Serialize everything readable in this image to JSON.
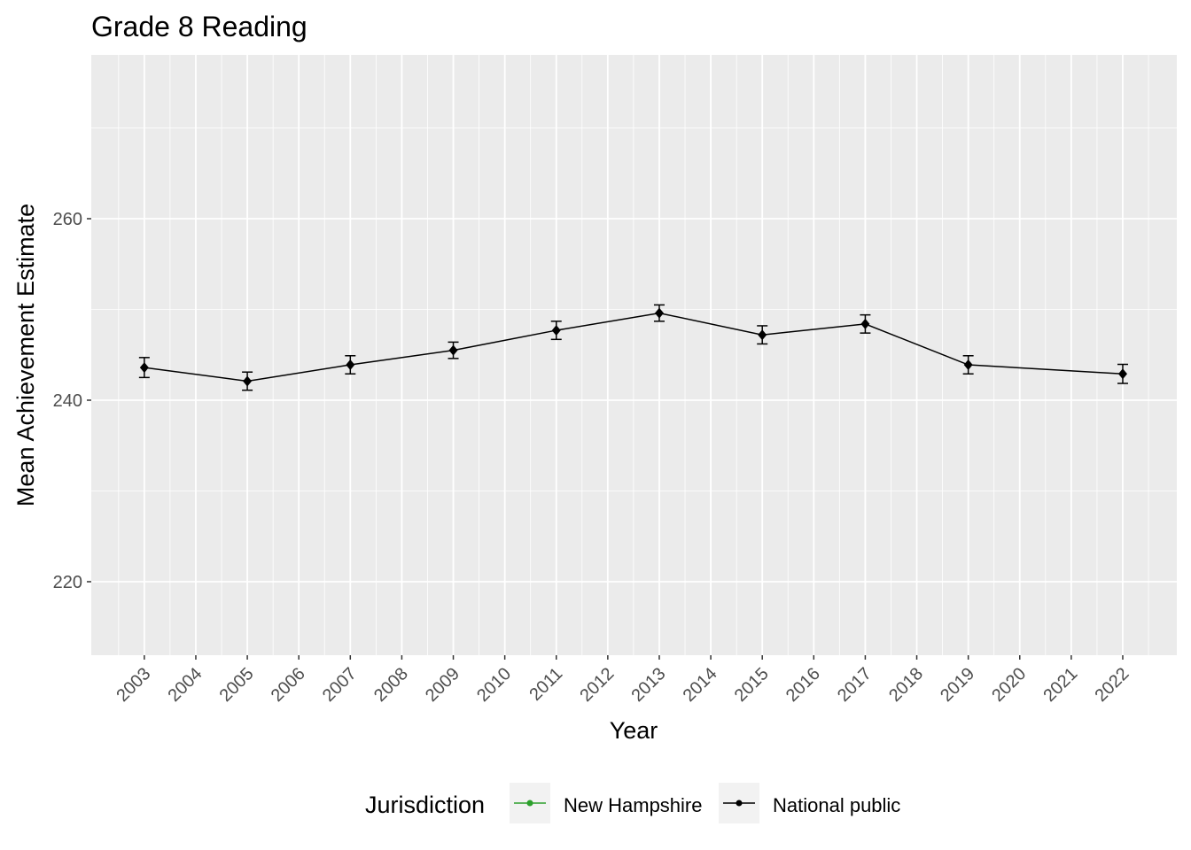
{
  "chart_data": {
    "type": "line",
    "title": "Grade 8 Reading",
    "xlabel": "Year",
    "ylabel": "Mean Achievement Estimate",
    "xlim": [
      2001.97,
      2023.05
    ],
    "ylim": [
      211.9,
      278.05
    ],
    "x_ticks": [
      2003,
      2004,
      2005,
      2006,
      2007,
      2008,
      2009,
      2010,
      2011,
      2012,
      2013,
      2014,
      2015,
      2016,
      2017,
      2018,
      2019,
      2020,
      2021,
      2022
    ],
    "y_ticks": [
      220,
      240,
      260
    ],
    "grid": true,
    "legend": {
      "title": "Jurisdiction",
      "placement": "bottom",
      "entries": [
        {
          "name": "New Hampshire",
          "color": "#2ca02c"
        },
        {
          "name": "National public",
          "color": "#000000"
        }
      ]
    },
    "series": [
      {
        "name": "National public",
        "color": "#000000",
        "x": [
          2003,
          2005,
          2007,
          2009,
          2011,
          2013,
          2015,
          2017,
          2019,
          2022
        ],
        "y": [
          243.6,
          242.1,
          243.9,
          245.5,
          247.7,
          249.6,
          247.2,
          248.4,
          243.9,
          242.9
        ],
        "error": [
          1.1,
          1.0,
          1.0,
          0.9,
          1.0,
          0.9,
          1.0,
          1.0,
          1.0,
          1.05
        ]
      }
    ]
  }
}
